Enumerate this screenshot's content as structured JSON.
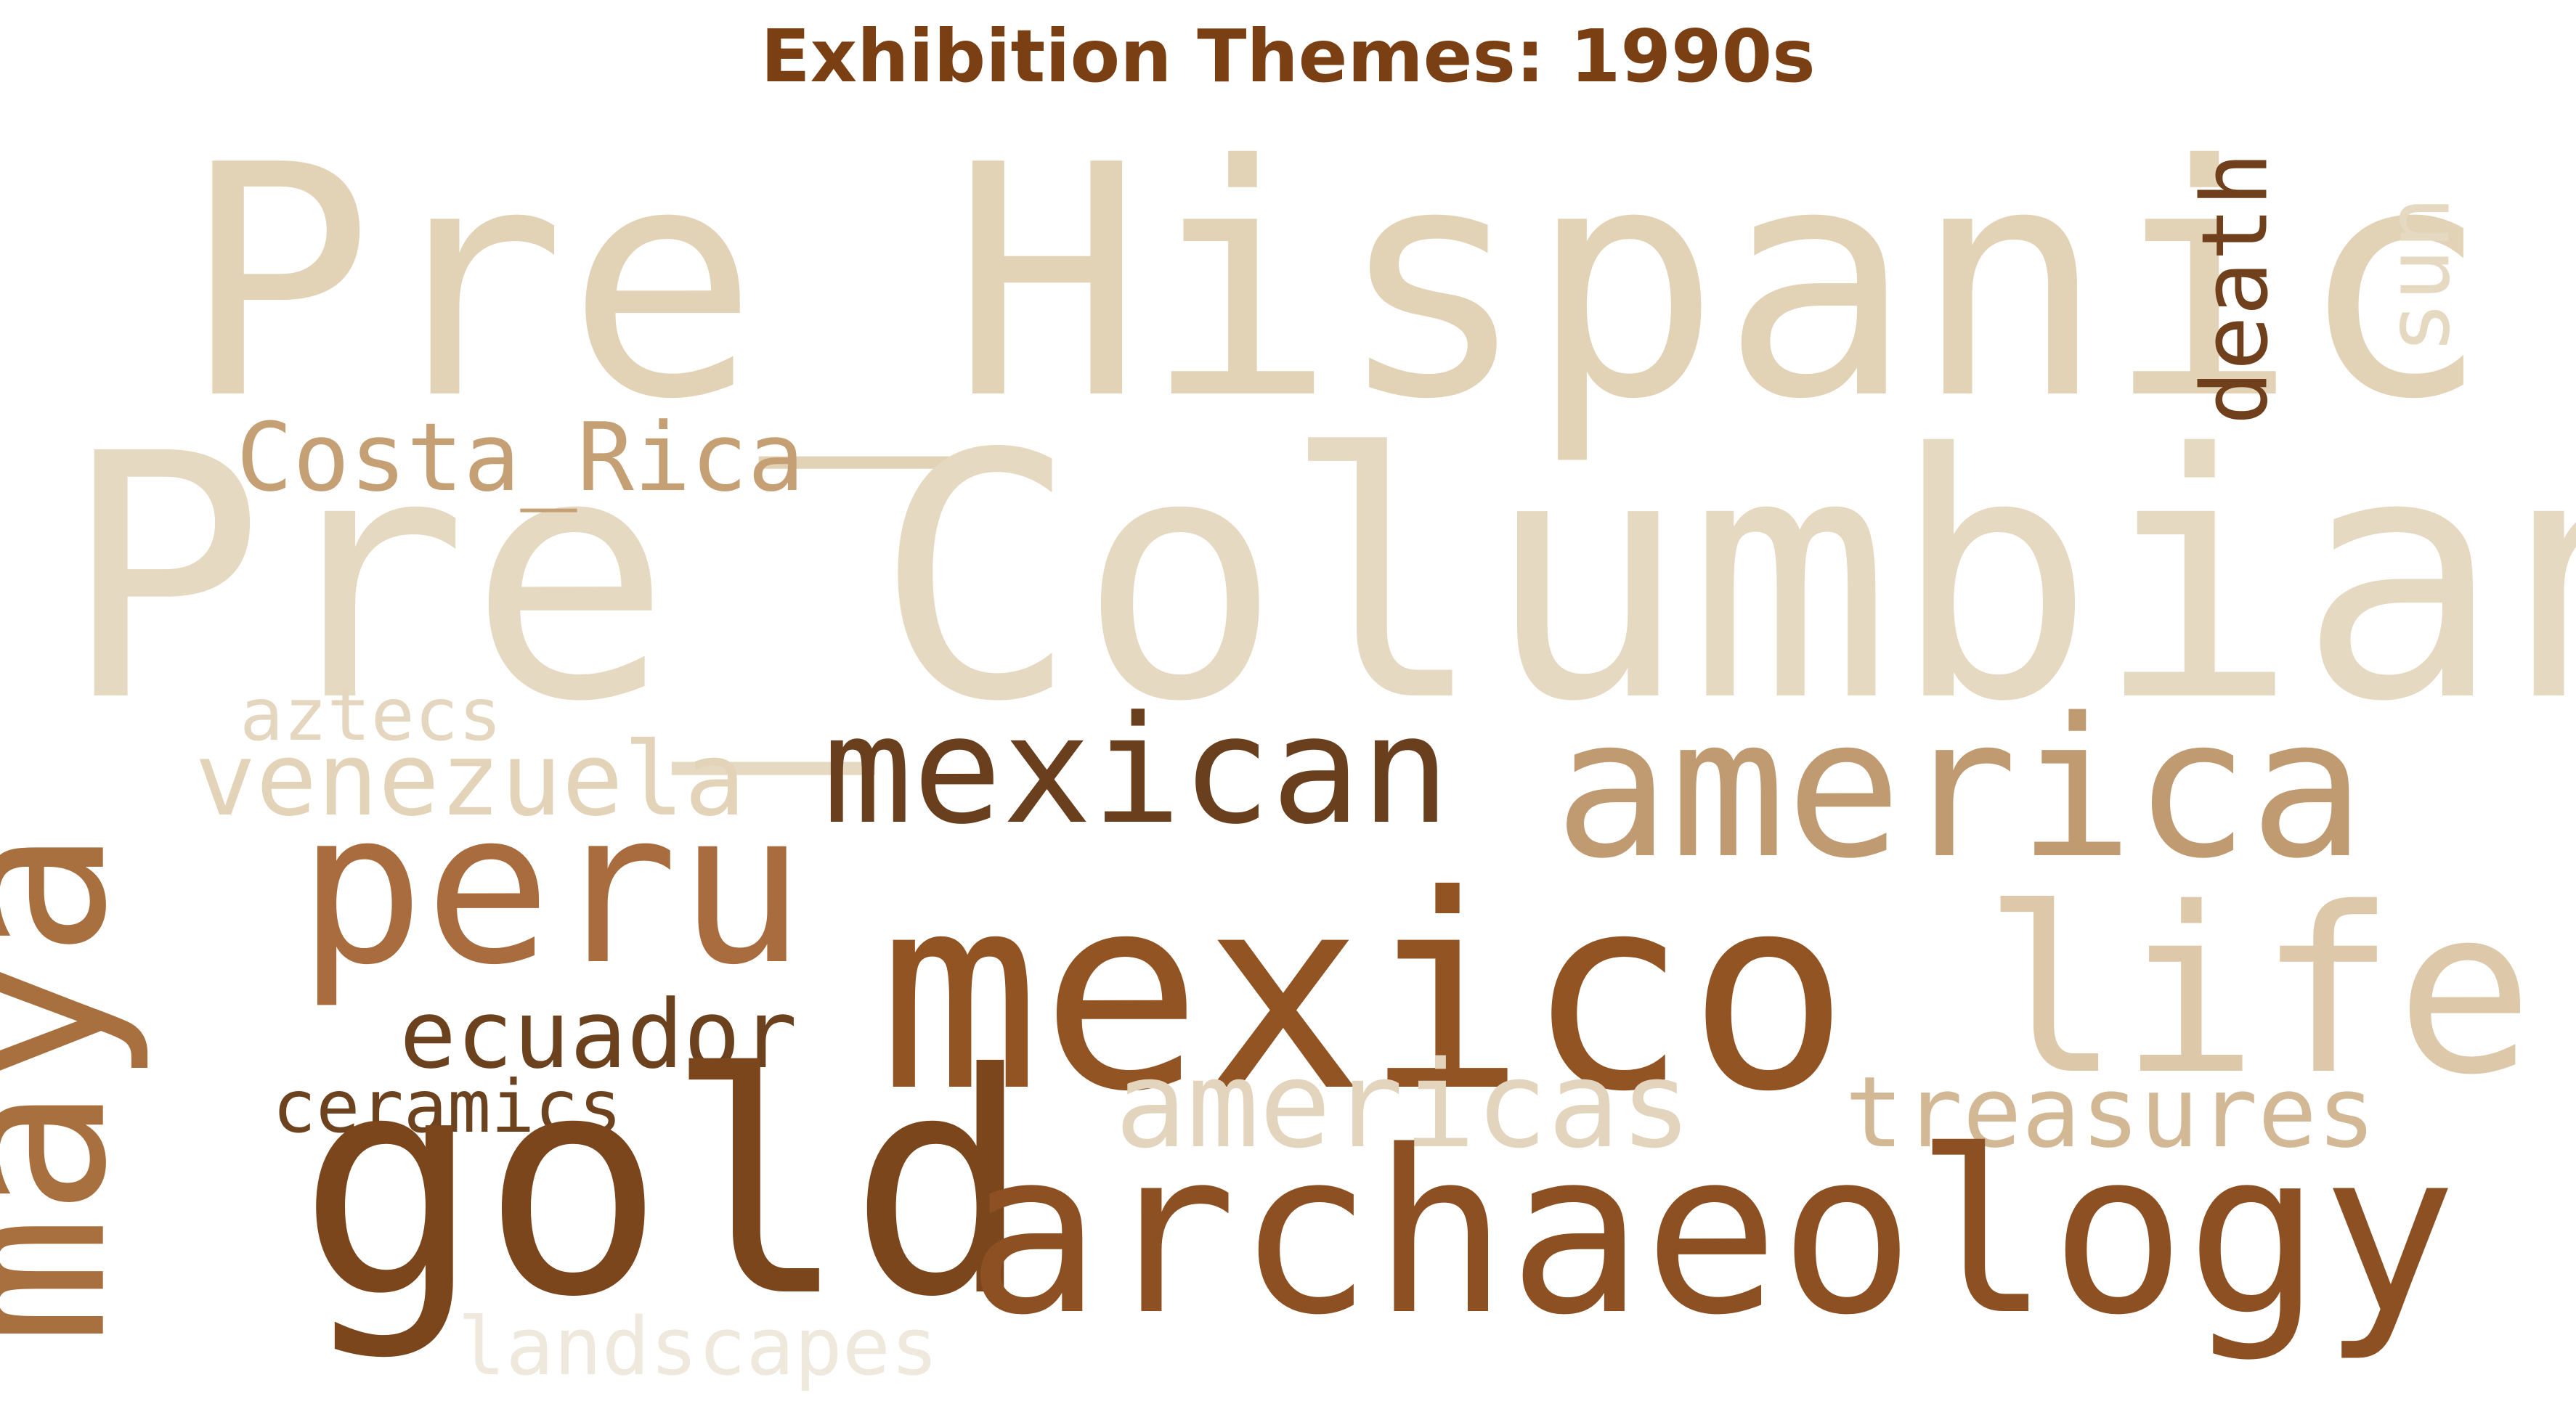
{
  "title": "Exhibition Themes: 1990s",
  "words": [
    {
      "id": "prehispanic",
      "text": "Pre_Hispanic",
      "color": "#e2d2b6"
    },
    {
      "id": "precolumbian",
      "text": "Pre_Columbian",
      "color": "#e6d9c2"
    },
    {
      "id": "costarica",
      "text": "Costa_Rica",
      "color": "#c4a074"
    },
    {
      "id": "death",
      "text": "death",
      "color": "#6f401b"
    },
    {
      "id": "sun",
      "text": "sun",
      "color": "#e6d9c2"
    },
    {
      "id": "aztecs",
      "text": "aztecs",
      "color": "#e4d6bf"
    },
    {
      "id": "venezuela",
      "text": "venezuela",
      "color": "#e3d3b8"
    },
    {
      "id": "mexican",
      "text": "mexican",
      "color": "#6a3f1e"
    },
    {
      "id": "america",
      "text": "america",
      "color": "#c09a70"
    },
    {
      "id": "peru",
      "text": "peru",
      "color": "#a86c3e"
    },
    {
      "id": "maya",
      "text": "maya",
      "color": "#a8703f"
    },
    {
      "id": "mexico",
      "text": "mexico",
      "color": "#935424"
    },
    {
      "id": "life",
      "text": "life",
      "color": "#ddc9aa"
    },
    {
      "id": "ecuador",
      "text": "ecuador",
      "color": "#6b411e"
    },
    {
      "id": "ceramics",
      "text": "ceramics",
      "color": "#6d431f"
    },
    {
      "id": "americas",
      "text": "americas",
      "color": "#e3d5bd"
    },
    {
      "id": "treasures",
      "text": "treasures",
      "color": "#d2b895"
    },
    {
      "id": "gold",
      "text": "gold",
      "color": "#7b461c"
    },
    {
      "id": "archaeology",
      "text": "archaeology",
      "color": "#8d5023"
    },
    {
      "id": "landscapes",
      "text": "landscapes",
      "color": "#efe8dc"
    }
  ]
}
